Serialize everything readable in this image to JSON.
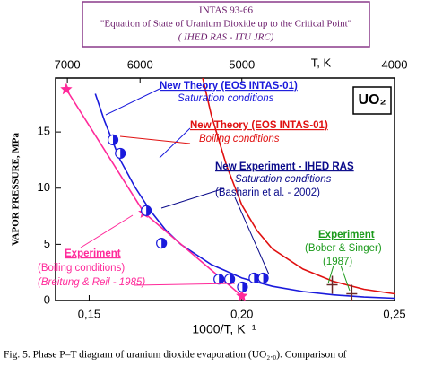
{
  "header": {
    "line1": "INTAS 93-66",
    "line2": "\"Equation of State of Uranium Dioxide up to the Critical Point\"",
    "line3": "( IHED RAS - ITU JRC)"
  },
  "caption": "Fig. 5. Phase P–T diagram of uranium dioxide evaporation (UO₂.₀). Comparison of",
  "chart_data": {
    "type": "line",
    "xlabel": "1000/T, K⁻¹",
    "ylabel": "VAPOR PRESSURE, MPa",
    "x2label": "T, K",
    "box_label": "UO₂",
    "xlim": [
      0.139,
      0.25
    ],
    "ylim": [
      0,
      19.8
    ],
    "xticks": [
      {
        "value": 0.15,
        "label": "0,15"
      },
      {
        "value": 0.2,
        "label": "0,20"
      },
      {
        "value": 0.25,
        "label": "0,25"
      }
    ],
    "x2ticks": [
      7000,
      6000,
      5000,
      4000
    ],
    "yticks": [
      0,
      5,
      10,
      15
    ],
    "series": [
      {
        "color": "#1a1adc",
        "line": true,
        "x": [
          0.152,
          0.155,
          0.16,
          0.165,
          0.17,
          0.175,
          0.18,
          0.19,
          0.2,
          0.21,
          0.22,
          0.23,
          0.24,
          0.25
        ],
        "values": [
          18.4,
          16,
          12.6,
          10.1,
          8,
          6.3,
          5,
          3.2,
          2,
          1.26,
          0.8,
          0.5,
          0.31,
          0.2
        ]
      },
      {
        "color": "#e01010",
        "line": true,
        "x": [
          0.187,
          0.19,
          0.195,
          0.2,
          0.205,
          0.21,
          0.22,
          0.23,
          0.24,
          0.25
        ],
        "values": [
          20,
          16.5,
          12,
          8.5,
          6.2,
          4.6,
          2.8,
          1.7,
          1,
          0.6
        ]
      },
      {
        "color": "#ff2a9a",
        "line": true,
        "marker": "star",
        "x": [
          0.1425,
          0.168,
          0.2
        ],
        "values": [
          18.8,
          7.8,
          0.4
        ]
      },
      {
        "color": "#1a1adc",
        "marker": "circle",
        "x": [
          0.1578,
          0.1602,
          0.1687,
          0.1737,
          0.1925,
          0.196,
          0.2002,
          0.204,
          0.207
        ],
        "values": [
          14.3,
          13.1,
          8,
          5.1,
          1.9,
          1.9,
          1.2,
          2,
          2
        ]
      },
      {
        "color": "#6a2a2a",
        "marker": "cross",
        "x": [
          0.2296,
          0.236
        ],
        "values": [
          1.4,
          0.6
        ]
      }
    ],
    "annotations": [
      {
        "text": "New Theory (EOS INTAS-01)",
        "color": "#1a1adc"
      },
      {
        "text": "Saturation conditions",
        "color": "#1a1adc"
      },
      {
        "text": "New Theory (EOS INTAS-01)",
        "color": "#e01010"
      },
      {
        "text": "Boiling conditions",
        "color": "#e01010"
      },
      {
        "text": "New Experiment - IHED RAS",
        "color": "#0a0a8a"
      },
      {
        "text": "Saturation conditions",
        "color": "#0a0a8a"
      },
      {
        "text": "(Basharin et al. - 2002)",
        "color": "#0a0a8a"
      },
      {
        "text": "Experiment",
        "color": "#1a9a1a"
      },
      {
        "text": "(Bober & Singer)",
        "color": "#1a9a1a"
      },
      {
        "text": "(1987)",
        "color": "#1a9a1a"
      },
      {
        "text": "Experiment",
        "color": "#ff2a9a"
      },
      {
        "text": "(Boiling conditions)",
        "color": "#ff2a9a"
      },
      {
        "text": "(Breitung & Reil - 1985)",
        "color": "#ff2a9a"
      }
    ]
  }
}
